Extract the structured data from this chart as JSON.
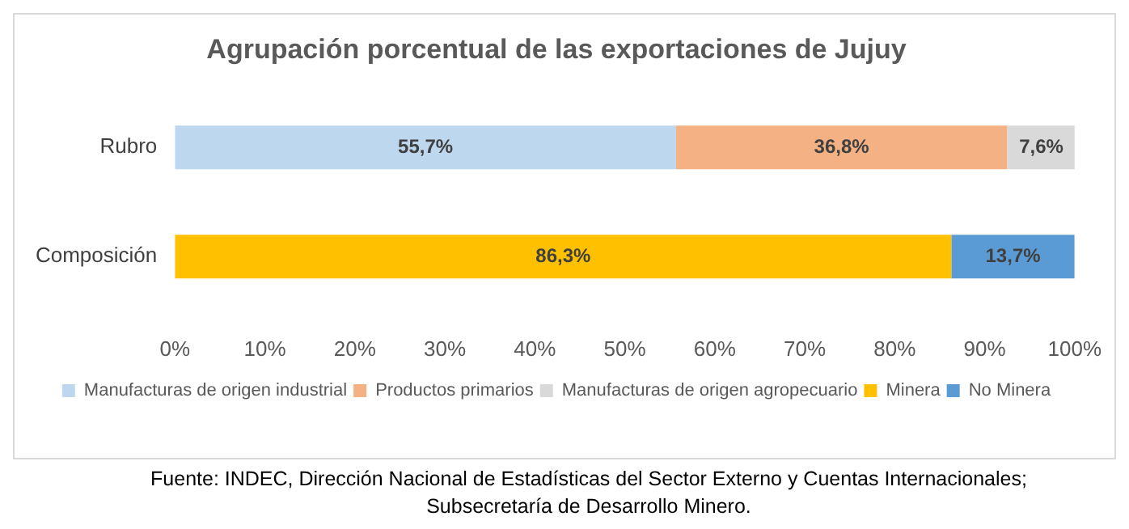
{
  "chart_data": {
    "type": "bar",
    "orientation": "horizontal",
    "stacked": true,
    "title": "Agrupación porcentual de las exportaciones de Jujuy",
    "categories": [
      "Rubro",
      "Composición"
    ],
    "series": [
      {
        "name": "Manufacturas de origen industrial",
        "color": "#bdd7ee",
        "values": [
          55.7,
          null
        ],
        "value_labels": [
          "55,7%",
          null
        ]
      },
      {
        "name": "Productos primarios",
        "color": "#f4b183",
        "values": [
          36.8,
          null
        ],
        "value_labels": [
          "36,8%",
          null
        ]
      },
      {
        "name": "Manufacturas de origen agropecuario",
        "color": "#d9d9d9",
        "values": [
          7.6,
          null
        ],
        "value_labels": [
          "7,6%",
          null
        ]
      },
      {
        "name": "Minera",
        "color": "#ffc000",
        "values": [
          null,
          86.3
        ],
        "value_labels": [
          null,
          "86,3%"
        ]
      },
      {
        "name": "No Minera",
        "color": "#5b9bd5",
        "values": [
          null,
          13.7
        ],
        "value_labels": [
          null,
          "13,7%"
        ]
      }
    ],
    "xlim": [
      0,
      100
    ],
    "xticks": [
      {
        "value": 0,
        "label": "0%"
      },
      {
        "value": 10,
        "label": "10%"
      },
      {
        "value": 20,
        "label": "20%"
      },
      {
        "value": 30,
        "label": "30%"
      },
      {
        "value": 40,
        "label": "40%"
      },
      {
        "value": 50,
        "label": "50%"
      },
      {
        "value": 60,
        "label": "60%"
      },
      {
        "value": 70,
        "label": "70%"
      },
      {
        "value": 80,
        "label": "80%"
      },
      {
        "value": 90,
        "label": "90%"
      },
      {
        "value": 100,
        "label": "100%"
      }
    ],
    "legend": "bottom",
    "annotations": [
      "Fuente: INDEC, Dirección Nacional de Estadísticas del Sector Externo y Cuentas Internacionales;",
      "Subsecretaría de Desarrollo Minero."
    ]
  }
}
